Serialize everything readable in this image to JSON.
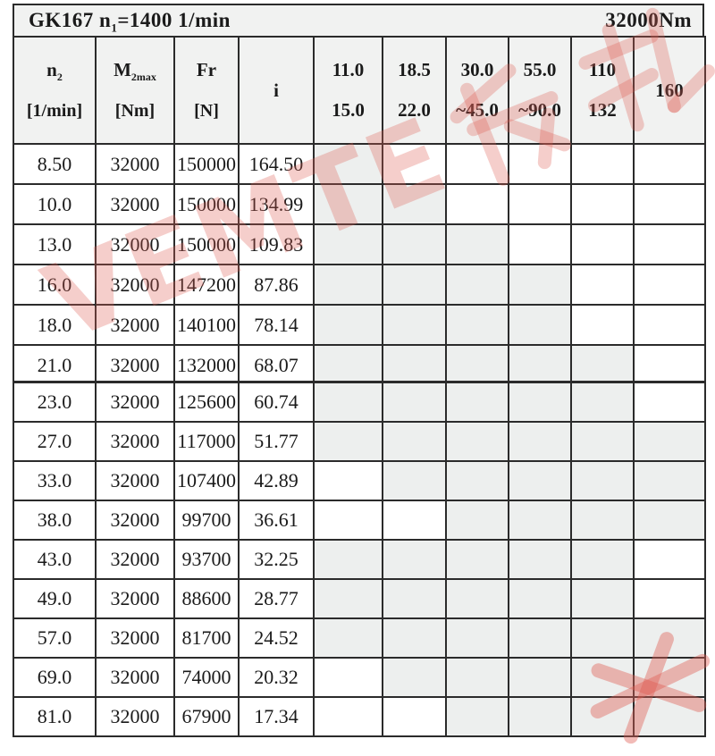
{
  "title": {
    "pre": "GK167 n",
    "sub": "1",
    "post": "=1400 1/min",
    "right": "32000Nm"
  },
  "header": {
    "cols": {
      "n2": {
        "base": "n",
        "sub": "2",
        "unit": "[1/min]"
      },
      "m2max": {
        "base": "M",
        "sub": "2max",
        "unit": "[Nm]"
      },
      "fr": {
        "base": "Fr",
        "sub": "",
        "unit": "[N]"
      },
      "i": {
        "base": "i",
        "sub": "",
        "unit": ""
      }
    },
    "power_cols": [
      {
        "line1": "11.0",
        "line2": "15.0"
      },
      {
        "line1": "18.5",
        "line2": "22.0"
      },
      {
        "line1": "30.0",
        "line2": "~45.0"
      },
      {
        "line1": "55.0",
        "line2": "~90.0"
      },
      {
        "line1": "110",
        "line2": "132"
      },
      {
        "line1": "160",
        "line2": ""
      }
    ]
  },
  "table": {
    "rows_top": [
      {
        "n2": "8.50",
        "m2max": "32000",
        "fr": "150000",
        "i": "164.50",
        "shaded": [
          1,
          0,
          0,
          0,
          0,
          0
        ]
      },
      {
        "n2": "10.0",
        "m2max": "32000",
        "fr": "150000",
        "i": "134.99",
        "shaded": [
          1,
          1,
          0,
          0,
          0,
          0
        ]
      },
      {
        "n2": "13.0",
        "m2max": "32000",
        "fr": "150000",
        "i": "109.83",
        "shaded": [
          1,
          1,
          1,
          0,
          0,
          0
        ]
      },
      {
        "n2": "16.0",
        "m2max": "32000",
        "fr": "147200",
        "i": "87.86",
        "shaded": [
          1,
          1,
          1,
          1,
          0,
          0
        ]
      },
      {
        "n2": "18.0",
        "m2max": "32000",
        "fr": "140100",
        "i": "78.14",
        "shaded": [
          1,
          1,
          1,
          1,
          0,
          0
        ]
      },
      {
        "n2": "21.0",
        "m2max": "32000",
        "fr": "132000",
        "i": "68.07",
        "shaded": [
          1,
          1,
          1,
          1,
          1,
          0
        ]
      }
    ],
    "rows_bottom": [
      {
        "n2": "23.0",
        "m2max": "32000",
        "fr": "125600",
        "i": "60.74",
        "shaded": [
          1,
          1,
          1,
          1,
          1,
          0
        ]
      },
      {
        "n2": "27.0",
        "m2max": "32000",
        "fr": "117000",
        "i": "51.77",
        "shaded": [
          1,
          1,
          1,
          1,
          1,
          1
        ]
      },
      {
        "n2": "33.0",
        "m2max": "32000",
        "fr": "107400",
        "i": "42.89",
        "shaded": [
          0,
          1,
          1,
          1,
          1,
          1
        ]
      },
      {
        "n2": "38.0",
        "m2max": "32000",
        "fr": "99700",
        "i": "36.61",
        "shaded": [
          0,
          0,
          1,
          1,
          1,
          1
        ]
      },
      {
        "n2": "43.0",
        "m2max": "32000",
        "fr": "93700",
        "i": "32.25",
        "shaded": [
          1,
          1,
          1,
          1,
          1,
          0
        ]
      },
      {
        "n2": "49.0",
        "m2max": "32000",
        "fr": "88600",
        "i": "28.77",
        "shaded": [
          1,
          1,
          1,
          1,
          1,
          0
        ]
      },
      {
        "n2": "57.0",
        "m2max": "32000",
        "fr": "81700",
        "i": "24.52",
        "shaded": [
          1,
          1,
          1,
          1,
          1,
          1
        ]
      },
      {
        "n2": "69.0",
        "m2max": "32000",
        "fr": "74000",
        "i": "20.32",
        "shaded": [
          0,
          1,
          1,
          1,
          1,
          1
        ]
      },
      {
        "n2": "81.0",
        "m2max": "32000",
        "fr": "67900",
        "i": "17.34",
        "shaded": [
          0,
          0,
          1,
          1,
          1,
          1
        ]
      }
    ]
  },
  "watermark": {
    "text": "VEMTE传动",
    "latin": "VEMTE",
    "color": "#DF5C54"
  },
  "colors": {
    "grid": "#2b2b2b",
    "shaded_cell": "#edefee",
    "header_bg": "#f1f2f1",
    "watermark": "#DF5C54"
  }
}
